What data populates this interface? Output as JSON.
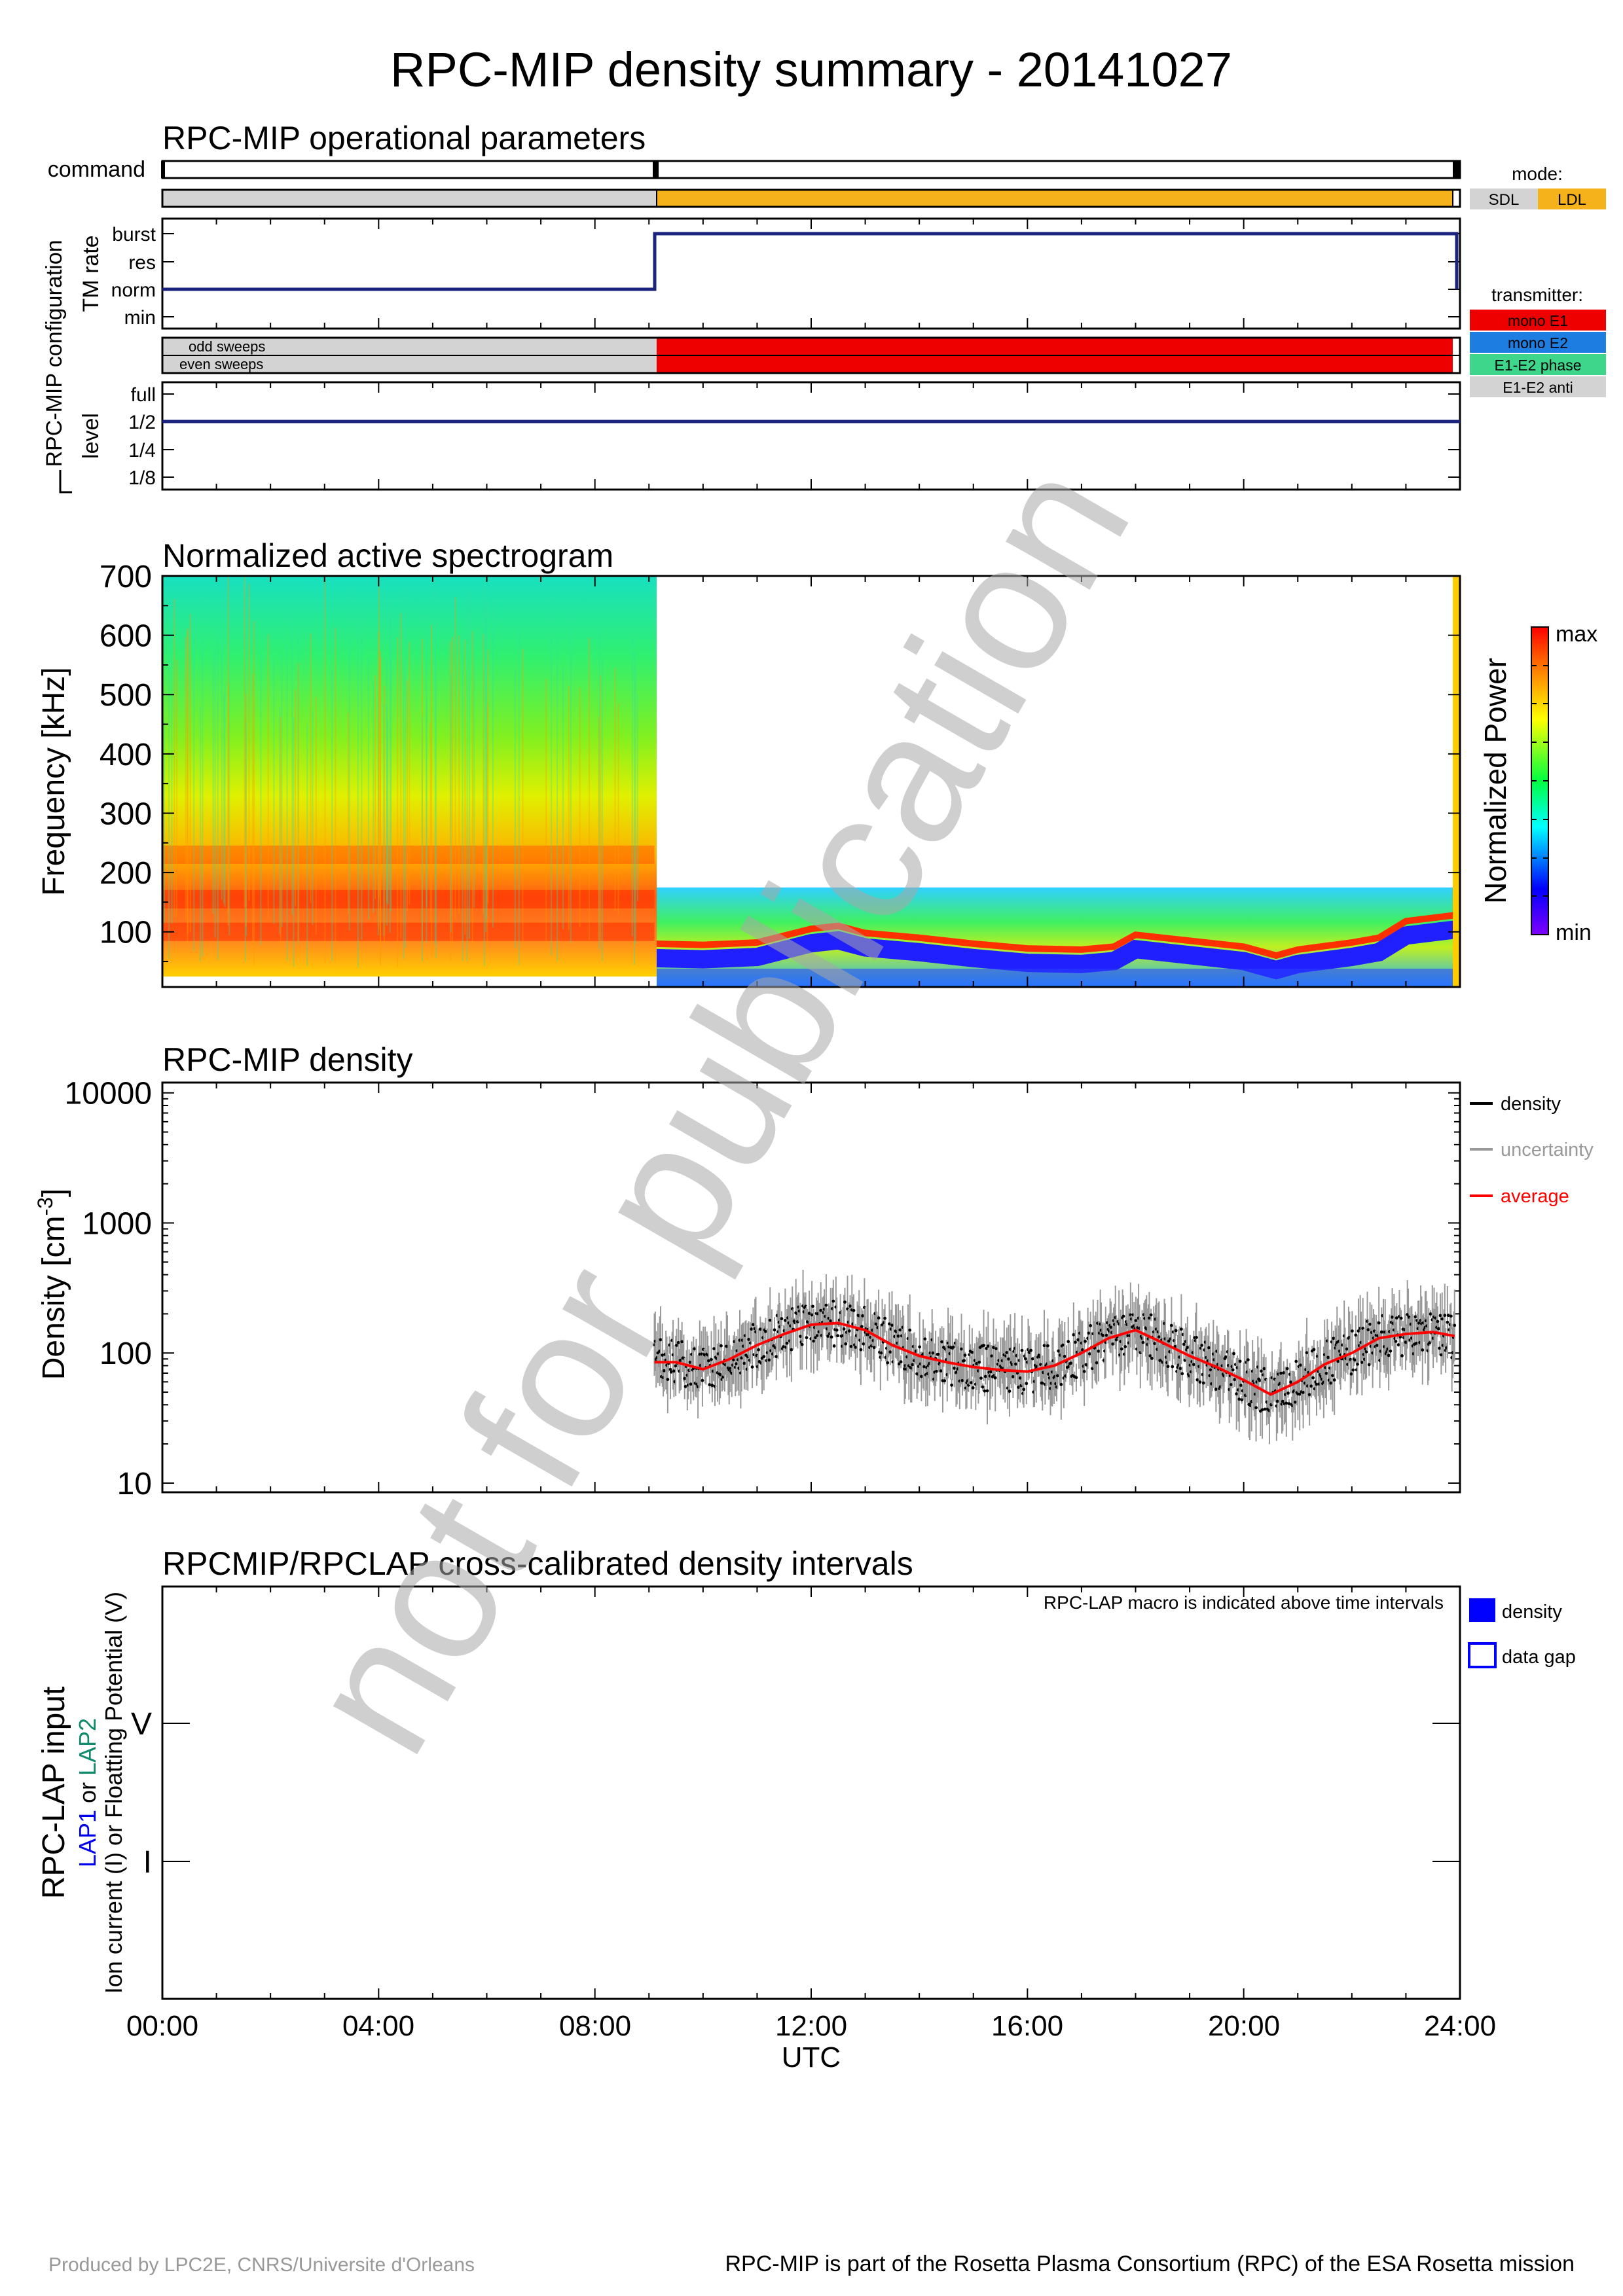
{
  "title": "RPC-MIP density summary - 20141027",
  "panels": {
    "operational": {
      "title": "RPC-MIP operational parameters",
      "command_label": "command",
      "config_group_label": "RPC-MIP configuration",
      "tm_rate_label": "TM rate",
      "tm_rate_levels": [
        "burst",
        "res",
        "norm",
        "min"
      ],
      "sweeps_labels": [
        "odd sweeps",
        "even sweeps"
      ],
      "level_label": "level",
      "level_levels": [
        "full",
        "1/2",
        "1/4",
        "1/8"
      ],
      "mode_legend": {
        "title": "mode:",
        "items": [
          {
            "label": "SDL",
            "color": "#d3d3d3"
          },
          {
            "label": "LDL",
            "color": "#f5b21b"
          }
        ]
      },
      "transmitter_legend": {
        "title": "transmitter:",
        "items": [
          {
            "label": "mono E1",
            "color": "#ee0000"
          },
          {
            "label": "mono E2",
            "color": "#1e7de0"
          },
          {
            "label": "E1-E2 phase",
            "color": "#3ed68a"
          },
          {
            "label": "E1-E2 anti",
            "color": "#d3d3d3"
          }
        ]
      }
    },
    "spectrogram": {
      "title": "Normalized active spectrogram",
      "ylabel": "Frequency [kHz]",
      "yticks": [
        "700",
        "600",
        "500",
        "400",
        "300",
        "200",
        "100"
      ],
      "colorbar_label": "Normalized Power",
      "colorbar_max": "max",
      "colorbar_min": "min"
    },
    "density": {
      "title": "RPC-MIP density",
      "ylabel": "Density [cm",
      "ylabel_sup": "-3",
      "ylabel_end": "]",
      "yticks": [
        "10000",
        "1000",
        "100",
        "10"
      ],
      "legend": [
        {
          "label": "density",
          "color": "#000000"
        },
        {
          "label": "uncertainty",
          "color": "#999999"
        },
        {
          "label": "average",
          "color": "#ff0000"
        }
      ]
    },
    "crosscal": {
      "title": "RPCMIP/RPCLAP cross-calibrated density intervals",
      "note": "RPC-LAP macro is indicated above time intervals",
      "ylabel_main": "RPC-LAP input",
      "ylabel_lap1": "LAP1",
      "ylabel_or": " or ",
      "ylabel_lap2": "LAP2",
      "ylabel_sub": "Ion current (I) or Floatting Potential (V)",
      "yticks": [
        "V",
        "I"
      ],
      "legend": [
        {
          "label": "density",
          "color": "#0000ff"
        },
        {
          "label": "data gap",
          "color": "#0000ff"
        }
      ]
    }
  },
  "x_axis": {
    "ticks": [
      "00:00",
      "04:00",
      "08:00",
      "12:00",
      "16:00",
      "20:00",
      "24:00"
    ],
    "label": "UTC"
  },
  "watermark": "not for publication",
  "footer_left": "Produced by LPC2E, CNRS/Universite d'Orleans",
  "footer_right": "RPC-MIP is part of the Rosetta Plasma Consortium (RPC) of the ESA Rosetta mission",
  "chart_data": [
    {
      "type": "line",
      "title": "RPC-MIP operational parameters",
      "series": [
        {
          "name": "TM rate",
          "x": [
            0,
            9.1,
            9.1,
            23.95,
            23.95
          ],
          "values": [
            "norm",
            "norm",
            "burst",
            "burst",
            "norm"
          ]
        },
        {
          "name": "level",
          "x": [
            0,
            24
          ],
          "values": [
            "1/2",
            "1/2"
          ]
        }
      ],
      "mode_intervals": [
        {
          "start": 0,
          "end": 9.1,
          "mode": "SDL"
        },
        {
          "start": 9.1,
          "end": 23.9,
          "mode": "LDL"
        }
      ],
      "transmitter_intervals": [
        {
          "start": 0,
          "end": 9.1,
          "transmitter": "E1-E2 anti"
        },
        {
          "start": 9.1,
          "end": 23.9,
          "transmitter": "mono E1"
        }
      ],
      "command_marks": [
        9.1,
        23.95
      ],
      "xlim": [
        0,
        24
      ]
    },
    {
      "type": "heatmap",
      "title": "Normalized active spectrogram",
      "ylabel": "Frequency [kHz]",
      "xlim": [
        0,
        24
      ],
      "ylim": [
        7,
        700
      ],
      "segments": [
        {
          "start": 0,
          "end": 9.1,
          "freq_max": 700,
          "peak_bands_khz": [
            100,
            155,
            230
          ]
        },
        {
          "start": 9.1,
          "end": 23.9,
          "freq_max": 170,
          "ridge_x": [
            9.1,
            10,
            11,
            12,
            12.5,
            13,
            14,
            15,
            16,
            17,
            17.6,
            18,
            19,
            20,
            20.6,
            21,
            22,
            22.5,
            23,
            23.9
          ],
          "ridge_khz": [
            80,
            78,
            82,
            105,
            110,
            98,
            90,
            80,
            72,
            70,
            75,
            95,
            85,
            75,
            60,
            70,
            82,
            90,
            118,
            128
          ]
        }
      ]
    },
    {
      "type": "scatter",
      "title": "RPC-MIP density",
      "ylabel": "Density [cm-3]",
      "yscale": "log",
      "ylim": [
        8.5,
        12000
      ],
      "xlim": [
        0,
        24
      ],
      "series": [
        {
          "name": "average",
          "x": [
            9.1,
            9.5,
            10,
            10.5,
            11,
            11.5,
            12,
            12.5,
            13,
            13.5,
            14,
            14.5,
            15,
            15.5,
            16,
            16.5,
            17,
            17.5,
            18,
            18.5,
            19,
            19.5,
            20,
            20.5,
            21,
            21.5,
            22,
            22.5,
            23,
            23.5,
            23.9
          ],
          "values": [
            85,
            85,
            75,
            90,
            115,
            140,
            165,
            170,
            150,
            115,
            95,
            85,
            78,
            74,
            72,
            80,
            100,
            130,
            150,
            120,
            95,
            78,
            62,
            48,
            60,
            82,
            100,
            130,
            140,
            145,
            135
          ]
        }
      ]
    },
    {
      "type": "bar",
      "title": "RPCMIP/RPCLAP cross-calibrated density intervals",
      "xlim": [
        0,
        24
      ],
      "categories": [
        "V",
        "I"
      ],
      "intervals": []
    }
  ]
}
